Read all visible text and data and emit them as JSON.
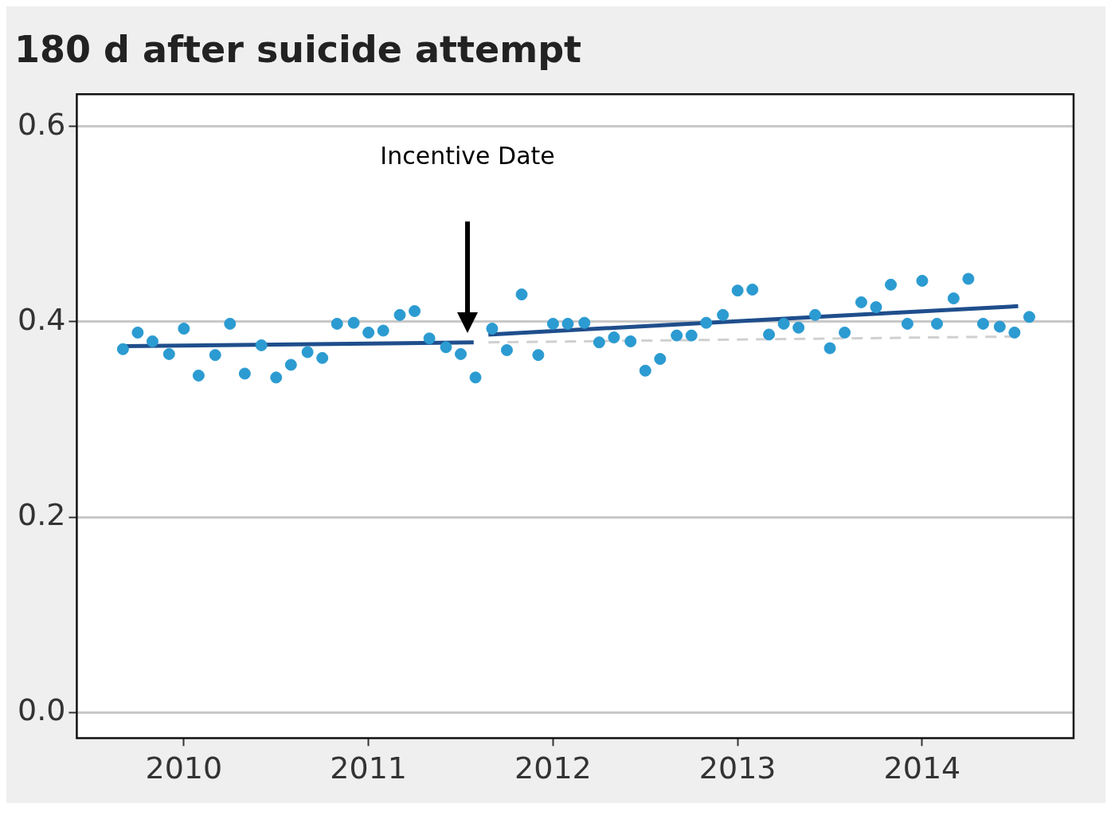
{
  "chart_data": {
    "type": "scatter",
    "title": "180 d after suicide attempt",
    "xlim": [
      2009.42,
      2014.82
    ],
    "xticks": [
      2010,
      2011,
      2012,
      2013,
      2014
    ],
    "ylim": [
      -0.026,
      0.633
    ],
    "yticks": [
      {
        "value": 0,
        "label": "0.0"
      },
      0.2,
      0.4,
      0.6
    ],
    "grid": "y",
    "legend": false,
    "annotations": [
      "Incentive Date"
    ],
    "series": [
      {
        "marker": "circle",
        "color": "#2b9bd1",
        "x": [
          2009.67,
          2009.75,
          2009.83,
          2009.92,
          2010.0,
          2010.08,
          2010.17,
          2010.25,
          2010.33,
          2010.42,
          2010.5,
          2010.58,
          2010.67,
          2010.75,
          2010.83,
          2010.92,
          2011.0,
          2011.08,
          2011.17,
          2011.25,
          2011.33,
          2011.42,
          2011.5,
          2011.58,
          2011.67,
          2011.75,
          2011.83,
          2011.92,
          2012.0,
          2012.08,
          2012.17,
          2012.25,
          2012.33,
          2012.42,
          2012.5,
          2012.58,
          2012.67,
          2012.75,
          2012.83,
          2012.92,
          2013.0,
          2013.08,
          2013.17,
          2013.25,
          2013.33,
          2013.42,
          2013.5,
          2013.58,
          2013.67,
          2013.75,
          2013.83,
          2013.92,
          2014.0,
          2014.08,
          2014.17,
          2014.25,
          2014.33,
          2014.42,
          2014.5,
          2014.58
        ],
        "values": [
          0.372,
          0.389,
          0.38,
          0.367,
          0.393,
          0.345,
          0.366,
          0.398,
          0.347,
          0.376,
          0.343,
          0.356,
          0.369,
          0.363,
          0.398,
          0.399,
          0.389,
          0.391,
          0.407,
          0.411,
          0.383,
          0.374,
          0.367,
          0.343,
          0.393,
          0.371,
          0.428,
          0.366,
          0.398,
          0.398,
          0.399,
          0.379,
          0.384,
          0.38,
          0.35,
          0.362,
          0.386,
          0.386,
          0.399,
          0.407,
          0.432,
          0.433,
          0.387,
          0.398,
          0.394,
          0.407,
          0.373,
          0.389,
          0.42,
          0.415,
          0.438,
          0.398,
          0.442,
          0.398,
          0.424,
          0.444,
          0.398,
          0.395,
          0.389,
          0.405
        ]
      },
      {
        "type": "line",
        "color": "#1f4e8c",
        "x": [
          2009.68,
          2011.57
        ],
        "values": [
          0.375,
          0.379
        ]
      },
      {
        "type": "line",
        "color": "#1f4e8c",
        "x": [
          2011.65,
          2014.52
        ],
        "values": [
          0.387,
          0.416
        ]
      },
      {
        "type": "line",
        "color": "#d0d0d0",
        "line_style": "dashed",
        "x": [
          2011.65,
          2014.52
        ],
        "values": [
          0.379,
          0.385
        ]
      }
    ]
  }
}
